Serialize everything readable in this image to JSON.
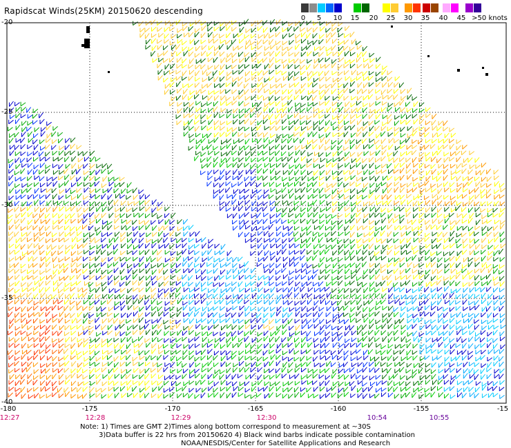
{
  "title": "Rapidscat Winds(25KM) 20150620 descending",
  "legend": {
    "labels": [
      "0",
      "5",
      "10",
      "15",
      "20",
      "25",
      "30",
      "35",
      "40",
      "45",
      ">50 knots"
    ],
    "colors": [
      "#3a3a3a",
      "#8c8c8c",
      "#00ccff",
      "#0066ff",
      "#0000cc",
      "#00cc00",
      "#006600",
      "#ffff00",
      "#ffcc33",
      "#ff9900",
      "#ff3300",
      "#cc0000",
      "#994400",
      "#ffaaff",
      "#ff00ff",
      "#9900cc",
      "#330099"
    ]
  },
  "axes": {
    "lat_labels": [
      "-20",
      "-25",
      "-30",
      "-35",
      "-40"
    ],
    "lon_labels": [
      "-180",
      "-175",
      "-170",
      "-165",
      "-160",
      "-155",
      "-15"
    ],
    "time_labels": [
      "12:27",
      "12:28",
      "12:29",
      "12:30",
      "10:54",
      "10:55"
    ]
  },
  "notes": {
    "line1": "Note: 1) Times are GMT 2)Times along bottom correspond to measurement at ~30S",
    "line2": "3)Data buffer is 22 hrs from 20150620 4) Black wind barbs indicate possible contamination",
    "line3": "NOAA/NESDIS/Center for Satellite Applications and Research"
  }
}
